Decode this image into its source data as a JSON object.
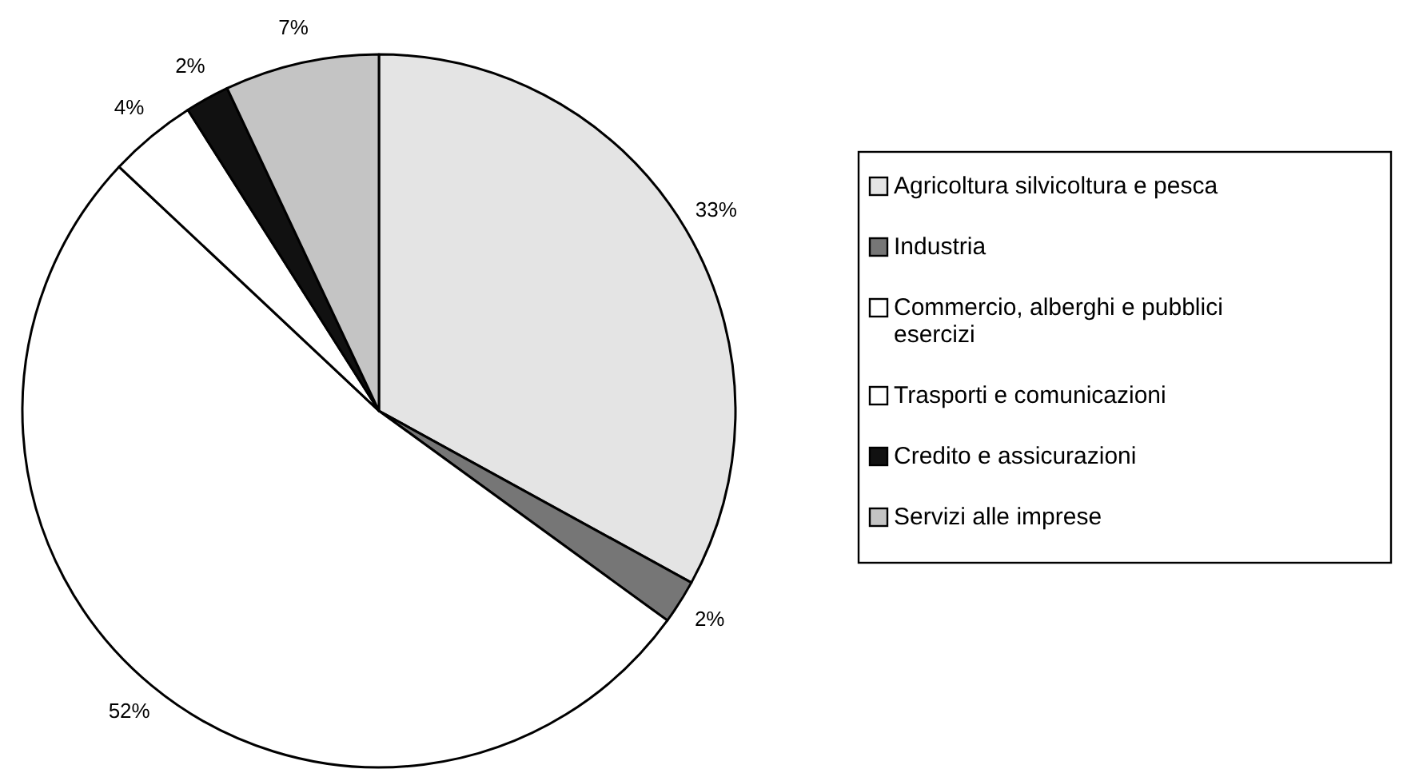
{
  "chart_data": {
    "type": "pie",
    "categories": [
      "Agricoltura silvicoltura e pesca",
      "Industria",
      "Commercio, alberghi e pubblici esercizi",
      "Trasporti e comunicazioni",
      "Credito e assicurazioni",
      "Servizi alle imprese"
    ],
    "values": [
      33,
      2,
      52,
      4,
      2,
      7
    ],
    "colors": [
      "#e4e4e4",
      "#767676",
      "#ffffff",
      "#ffffff",
      "#111111",
      "#c4c4c4"
    ],
    "value_labels": [
      "33%",
      "2%",
      "52%",
      "4%",
      "2%",
      "7%"
    ],
    "legend": "right"
  }
}
